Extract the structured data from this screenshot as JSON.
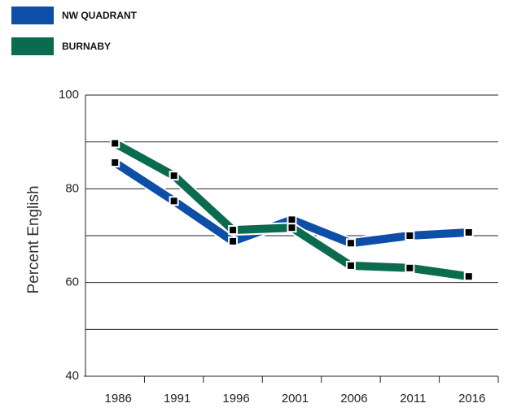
{
  "chart_data": {
    "type": "line",
    "y_label": "Percent English",
    "categories": [
      "1986",
      "1991",
      "1996",
      "2001",
      "2006",
      "2011",
      "2016"
    ],
    "series": [
      {
        "name": "NW QUADRANT",
        "color": "#0d4ea6",
        "values": [
          85.6,
          77.4,
          68.8,
          73.4,
          68.4,
          70.0,
          70.7
        ]
      },
      {
        "name": "BURNABY",
        "color": "#0b6b4e",
        "values": [
          89.7,
          82.8,
          71.2,
          71.7,
          63.6,
          63.1,
          61.3
        ]
      }
    ],
    "ylim": [
      40,
      100
    ],
    "yticks": [
      40,
      60,
      80,
      100
    ],
    "ygrid": [
      50,
      60,
      70,
      80,
      90,
      100
    ],
    "grid": true,
    "legend": "top-left"
  }
}
